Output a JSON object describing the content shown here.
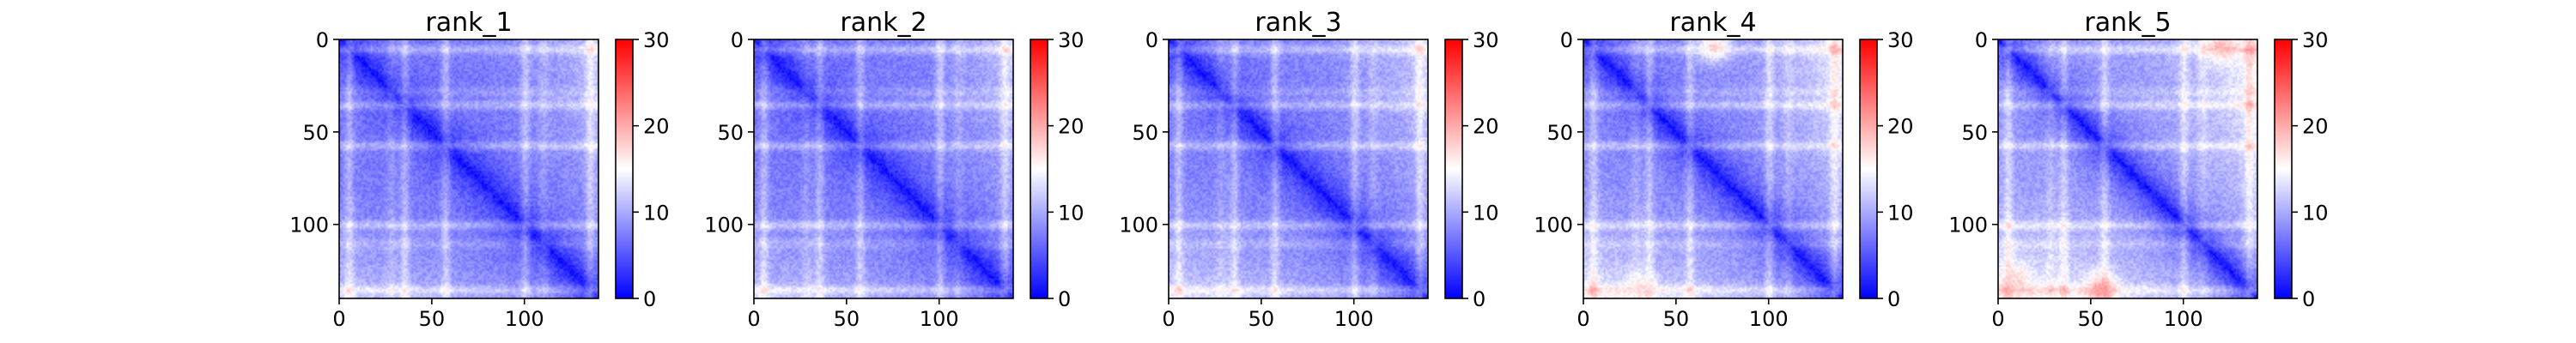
{
  "chart_data": {
    "type": "heatmap",
    "colormap": {
      "name": "bwr",
      "low": "#0000ff",
      "mid": "#ffffff",
      "high": "#ff0000"
    },
    "panels": [
      {
        "title": "rank_1",
        "vmin": 0,
        "vmax": 30,
        "x_ticks": [
          0,
          50,
          100
        ],
        "y_ticks": [
          0,
          50,
          100
        ],
        "x_range": [
          0,
          140
        ],
        "y_range": [
          0,
          140
        ],
        "colorbar_ticks": [
          0,
          10,
          20,
          30
        ],
        "matrix_size": 140,
        "edge_value": 12,
        "background_value": 7,
        "diagonal_value": 1,
        "row_bands": [
          5,
          35,
          57,
          100,
          135
        ],
        "col_bands": [
          28,
          110
        ],
        "hot_spots": []
      },
      {
        "title": "rank_2",
        "vmin": 0,
        "vmax": 30,
        "x_ticks": [
          0,
          50,
          100
        ],
        "y_ticks": [
          0,
          50,
          100
        ],
        "x_range": [
          0,
          140
        ],
        "y_range": [
          0,
          140
        ],
        "colorbar_ticks": [
          0,
          10,
          20,
          30
        ],
        "matrix_size": 140,
        "edge_value": 12,
        "background_value": 7,
        "diagonal_value": 1,
        "row_bands": [
          5,
          35,
          57,
          100,
          135
        ],
        "col_bands": [
          28,
          110
        ],
        "hot_spots": []
      },
      {
        "title": "rank_3",
        "vmin": 0,
        "vmax": 30,
        "x_ticks": [
          0,
          50,
          100
        ],
        "y_ticks": [
          0,
          50,
          100
        ],
        "x_range": [
          0,
          140
        ],
        "y_range": [
          0,
          140
        ],
        "colorbar_ticks": [
          0,
          10,
          20,
          30
        ],
        "matrix_size": 140,
        "edge_value": 13,
        "background_value": 7.5,
        "diagonal_value": 1,
        "row_bands": [
          5,
          35,
          57,
          100,
          135
        ],
        "col_bands": [
          28,
          110
        ],
        "hot_spots": []
      },
      {
        "title": "rank_4",
        "vmin": 0,
        "vmax": 30,
        "x_ticks": [
          0,
          50,
          100
        ],
        "y_ticks": [
          0,
          50,
          100
        ],
        "x_range": [
          0,
          140
        ],
        "y_range": [
          0,
          140
        ],
        "colorbar_ticks": [
          0,
          10,
          20,
          30
        ],
        "matrix_size": 140,
        "edge_value": 15,
        "background_value": 8,
        "diagonal_value": 1,
        "row_bands": [
          5,
          35,
          57,
          100,
          135
        ],
        "col_bands": [
          28,
          110
        ],
        "hot_spots": [
          [
            3,
            70,
            19
          ],
          [
            135,
            30,
            17
          ]
        ]
      },
      {
        "title": "rank_5",
        "vmin": 0,
        "vmax": 30,
        "x_ticks": [
          0,
          50,
          100
        ],
        "y_ticks": [
          0,
          50,
          100
        ],
        "x_range": [
          0,
          140
        ],
        "y_range": [
          0,
          140
        ],
        "colorbar_ticks": [
          0,
          10,
          20,
          30
        ],
        "matrix_size": 140,
        "edge_value": 16,
        "background_value": 9,
        "diagonal_value": 1,
        "row_bands": [
          5,
          35,
          57,
          100,
          135
        ],
        "col_bands": [
          28,
          110
        ],
        "hot_spots": [
          [
            3,
            120,
            20
          ],
          [
            135,
            55,
            22
          ],
          [
            130,
            10,
            18
          ]
        ]
      }
    ]
  }
}
